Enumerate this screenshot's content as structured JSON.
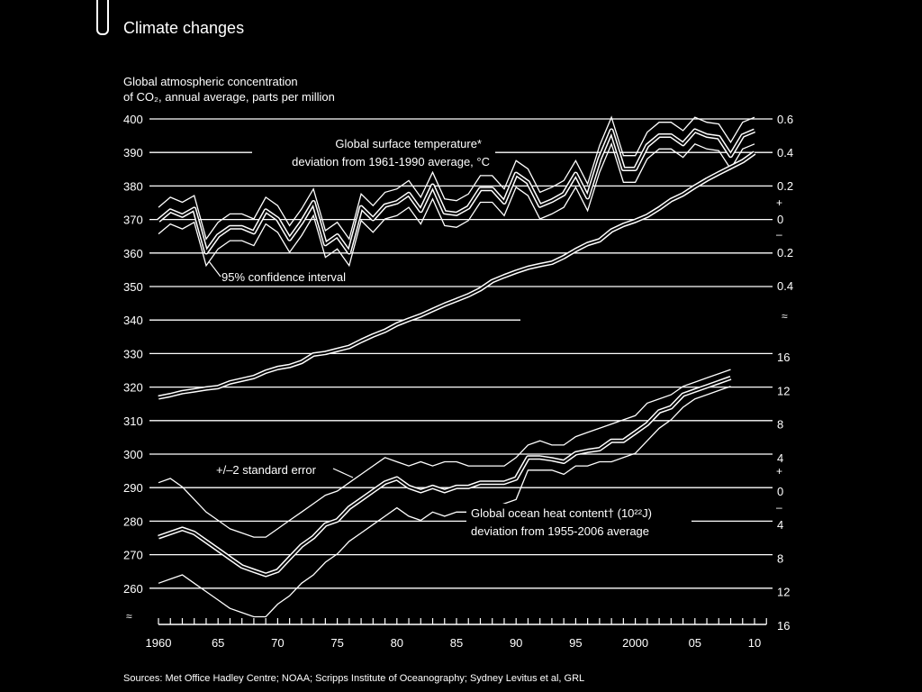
{
  "header": {
    "title": "Climate changes"
  },
  "chart_data": {
    "type": "line",
    "title": "Climate changes",
    "subtitle_lines": [
      "Global atmospheric concentration",
      "of CO₂, annual average, parts per million"
    ],
    "left_axis": {
      "ticks": [
        400,
        390,
        380,
        370,
        360,
        350,
        340,
        330,
        320,
        310,
        300,
        290,
        280,
        270,
        260
      ],
      "ylim": [
        255,
        400
      ]
    },
    "right_axis_top": {
      "tick_labels": [
        "0.6",
        "0.4",
        "0.2",
        "0",
        "0.2",
        "0.4"
      ],
      "tick_values": [
        0.6,
        0.4,
        0.2,
        0,
        -0.2,
        -0.4
      ],
      "plus_sign": "+",
      "minus_sign": "–"
    },
    "right_axis_bottom": {
      "tick_labels": [
        "16",
        "12",
        "8",
        "4",
        "0",
        "4",
        "8",
        "12",
        "16"
      ],
      "tick_values": [
        16,
        12,
        8,
        4,
        0,
        -4,
        -8,
        -12,
        -16
      ],
      "plus_sign": "+",
      "minus_sign": "–"
    },
    "x_tick_labels": [
      "1960",
      "65",
      "70",
      "75",
      "80",
      "85",
      "90",
      "95",
      "2000",
      "05",
      "10"
    ],
    "x_tick_years": [
      1960,
      1965,
      1970,
      1975,
      1980,
      1985,
      1990,
      1995,
      2000,
      2005,
      2010
    ],
    "xlim": [
      1960,
      2011
    ],
    "annotations": {
      "temp_label_1": "Global surface temperature*",
      "temp_label_2": "deviation from 1961-1990 average, °C",
      "ci_label": "95% confidence interval",
      "se_label": "+/–2 standard error",
      "ocean_label_1": "Global ocean heat content† (10²²J)",
      "ocean_label_2": "deviation from 1955-2006 average"
    },
    "source": "Sources: Met Office Hadley Centre; NOAA; Scripps Institute of Oceanography; Sydney Levitus et al, GRL",
    "series": [
      {
        "name": "CO2 concentration (ppm)",
        "axis": "left",
        "x": [
          1960,
          1961,
          1962,
          1963,
          1964,
          1965,
          1966,
          1967,
          1968,
          1969,
          1970,
          1971,
          1972,
          1973,
          1974,
          1975,
          1976,
          1977,
          1978,
          1979,
          1980,
          1981,
          1982,
          1983,
          1984,
          1985,
          1986,
          1987,
          1988,
          1989,
          1990,
          1991,
          1992,
          1993,
          1994,
          1995,
          1996,
          1997,
          1998,
          1999,
          2000,
          2001,
          2002,
          2003,
          2004,
          2005,
          2006,
          2007,
          2008,
          2009,
          2010
        ],
        "values": [
          316.9,
          317.6,
          318.5,
          319.0,
          319.6,
          320.0,
          321.4,
          322.2,
          323.0,
          324.6,
          325.7,
          326.3,
          327.5,
          329.7,
          330.2,
          331.1,
          332.0,
          333.8,
          335.4,
          336.8,
          338.7,
          340.1,
          341.4,
          343.0,
          344.6,
          346.0,
          347.4,
          349.2,
          351.6,
          353.1,
          354.4,
          355.6,
          356.4,
          357.1,
          358.8,
          360.9,
          362.7,
          363.8,
          366.7,
          368.4,
          369.6,
          371.1,
          373.3,
          375.8,
          377.5,
          379.8,
          381.9,
          383.8,
          385.6,
          387.4,
          389.9
        ]
      },
      {
        "name": "Global surface temperature deviation (°C)",
        "axis": "right_top",
        "x": [
          1960,
          1961,
          1962,
          1963,
          1964,
          1965,
          1966,
          1967,
          1968,
          1969,
          1970,
          1971,
          1972,
          1973,
          1974,
          1975,
          1976,
          1977,
          1978,
          1979,
          1980,
          1981,
          1982,
          1983,
          1984,
          1985,
          1986,
          1987,
          1988,
          1989,
          1990,
          1991,
          1992,
          1993,
          1994,
          1995,
          1996,
          1997,
          1998,
          1999,
          2000,
          2001,
          2002,
          2003,
          2004,
          2005,
          2006,
          2007,
          2008,
          2009,
          2010
        ],
        "values": [
          -0.01,
          0.05,
          0.02,
          0.06,
          -0.2,
          -0.1,
          -0.05,
          -0.05,
          -0.08,
          0.05,
          0.0,
          -0.12,
          -0.02,
          0.1,
          -0.15,
          -0.1,
          -0.2,
          0.07,
          0.0,
          0.08,
          0.1,
          0.15,
          0.05,
          0.2,
          0.04,
          0.03,
          0.07,
          0.18,
          0.18,
          0.1,
          0.27,
          0.22,
          0.08,
          0.11,
          0.15,
          0.27,
          0.13,
          0.36,
          0.53,
          0.3,
          0.3,
          0.44,
          0.5,
          0.5,
          0.45,
          0.53,
          0.5,
          0.49,
          0.38,
          0.5,
          0.53
        ],
        "ci_half_width": 0.08
      },
      {
        "name": "Global ocean heat content deviation (10^22 J)",
        "axis": "right_bottom",
        "x": [
          1960,
          1961,
          1962,
          1963,
          1964,
          1965,
          1966,
          1967,
          1968,
          1969,
          1970,
          1971,
          1972,
          1973,
          1974,
          1975,
          1976,
          1977,
          1978,
          1979,
          1980,
          1981,
          1982,
          1983,
          1984,
          1985,
          1986,
          1987,
          1988,
          1989,
          1990,
          1991,
          1992,
          1993,
          1994,
          1995,
          1996,
          1997,
          1998,
          1999,
          2000,
          2001,
          2002,
          2003,
          2004,
          2005,
          2006,
          2007,
          2008
        ],
        "values": [
          -5.5,
          -5.0,
          -4.5,
          -5.0,
          -6.0,
          -7.0,
          -8.0,
          -9.0,
          -9.5,
          -10.0,
          -9.5,
          -8.0,
          -6.5,
          -5.5,
          -4.0,
          -3.5,
          -2.0,
          -1.0,
          0.0,
          1.0,
          1.5,
          0.5,
          0.0,
          0.5,
          0.0,
          0.5,
          0.5,
          1.0,
          1.0,
          1.0,
          1.5,
          4.0,
          4.0,
          3.8,
          3.5,
          4.5,
          4.8,
          5.0,
          6.0,
          6.0,
          7.0,
          8.0,
          9.5,
          10.0,
          11.5,
          12.0,
          12.5,
          13.0,
          13.5
        ],
        "se_upper": [
          1.0,
          1.5,
          0.5,
          -1.0,
          -2.5,
          -3.5,
          -4.5,
          -5.0,
          -5.5,
          -5.5,
          -4.5,
          -3.5,
          -2.5,
          -1.5,
          -0.5,
          0.0,
          1.0,
          2.0,
          3.0,
          4.0,
          3.5,
          3.0,
          3.5,
          3.0,
          3.5,
          3.5,
          3.0,
          3.0,
          3.0,
          3.0,
          4.0,
          5.5,
          6.0,
          5.5,
          5.5,
          6.5,
          7.0,
          7.5,
          8.0,
          8.5,
          9.0,
          10.5,
          11.0,
          11.5,
          12.5,
          13.0,
          13.5,
          14.0,
          14.5
        ],
        "se_lower": [
          -11.0,
          -10.5,
          -10.0,
          -11.0,
          -12.0,
          -13.0,
          -14.0,
          -14.5,
          -15.0,
          -15.0,
          -13.5,
          -12.5,
          -11.0,
          -10.0,
          -8.5,
          -7.5,
          -6.0,
          -5.0,
          -4.0,
          -3.0,
          -2.0,
          -3.0,
          -3.5,
          -2.5,
          -3.0,
          -2.5,
          -2.5,
          -2.0,
          -2.0,
          -1.5,
          -1.0,
          2.5,
          2.5,
          2.5,
          2.0,
          3.0,
          3.0,
          3.5,
          3.5,
          4.0,
          4.5,
          6.0,
          7.5,
          8.5,
          10.0,
          11.0,
          11.5,
          12.0,
          12.5
        ]
      }
    ]
  },
  "colors": {
    "background": "#000000",
    "foreground": "#ffffff"
  }
}
